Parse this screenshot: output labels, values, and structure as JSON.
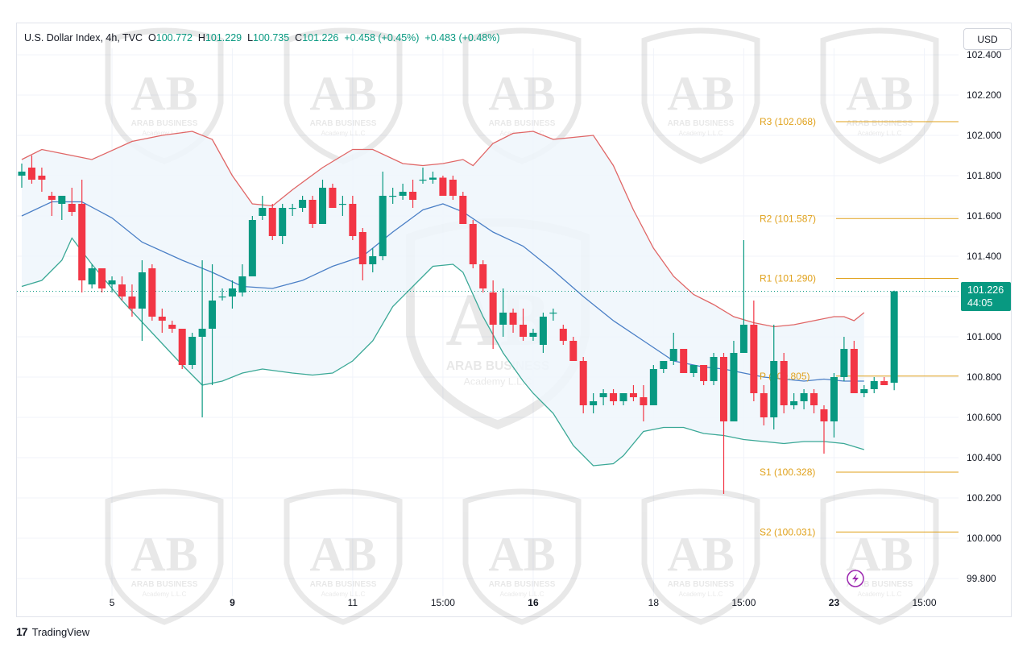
{
  "header": {
    "symbol": "U.S. Dollar Index, 4h, TVC",
    "o_label": "O",
    "o_value": "100.772",
    "h_label": "H",
    "h_value": "101.229",
    "l_label": "L",
    "l_value": "100.735",
    "c_label": "C",
    "c_value": "101.226",
    "change": "+0.458 (+0.45%)",
    "change2": "+0.483 (+0.48%)"
  },
  "currency_button": "USD",
  "price_tag": {
    "price": "101.226",
    "countdown": "44:05"
  },
  "watermark": {
    "monogram": "AB",
    "line1": "ARAB BUSINESS",
    "line2": "Academy L.L.C"
  },
  "branding": "TradingView",
  "colors": {
    "up": "#089981",
    "down": "#f23645",
    "upper_band": "#e06666",
    "lower_band": "#3aa896",
    "basis": "#4a7fc6",
    "pivot": "#e0a11b",
    "band_fill": "#eef6fb"
  },
  "chart_data": {
    "type": "candlestick",
    "timeframe": "4h",
    "ylim": [
      99.8,
      102.4
    ],
    "y_ticks": [
      "99.800",
      "100.000",
      "100.200",
      "100.400",
      "100.600",
      "100.800",
      "101.000",
      "101.200",
      "101.400",
      "101.600",
      "101.800",
      "102.000",
      "102.200",
      "102.400"
    ],
    "x_ticks": [
      {
        "label": "5",
        "bar": 9,
        "bold": false
      },
      {
        "label": "9",
        "bar": 21,
        "bold": true
      },
      {
        "label": "11",
        "bar": 33,
        "bold": false
      },
      {
        "label": "15:00",
        "bar": 42,
        "bold": false
      },
      {
        "label": "16",
        "bar": 51,
        "bold": true
      },
      {
        "label": "18",
        "bar": 63,
        "bold": false
      },
      {
        "label": "15:00",
        "bar": 72,
        "bold": false
      },
      {
        "label": "23",
        "bar": 81,
        "bold": true
      },
      {
        "label": "15:00",
        "bar": 90,
        "bold": false
      }
    ],
    "ohlc": [
      [
        101.8,
        101.86,
        101.74,
        101.82
      ],
      [
        101.84,
        101.9,
        101.76,
        101.78
      ],
      [
        101.8,
        101.84,
        101.72,
        101.78
      ],
      [
        101.7,
        101.72,
        101.6,
        101.68
      ],
      [
        101.66,
        101.68,
        101.58,
        101.7
      ],
      [
        101.66,
        101.74,
        101.6,
        101.62
      ],
      [
        101.66,
        101.78,
        101.22,
        101.28
      ],
      [
        101.26,
        101.36,
        101.24,
        101.34
      ],
      [
        101.34,
        101.34,
        101.22,
        101.24
      ],
      [
        101.26,
        101.3,
        101.22,
        101.28
      ],
      [
        101.26,
        101.3,
        101.18,
        101.2
      ],
      [
        101.2,
        101.26,
        101.1,
        101.14
      ],
      [
        101.14,
        101.38,
        100.98,
        101.32
      ],
      [
        101.34,
        101.36,
        101.08,
        101.1
      ],
      [
        101.1,
        101.14,
        101.02,
        101.08
      ],
      [
        101.06,
        101.08,
        101.02,
        101.04
      ],
      [
        101.04,
        101.04,
        100.84,
        100.86
      ],
      [
        100.86,
        101.02,
        100.84,
        101.0
      ],
      [
        101.0,
        101.38,
        100.6,
        101.04
      ],
      [
        101.04,
        101.36,
        100.76,
        101.18
      ],
      [
        101.2,
        101.24,
        101.18,
        101.2
      ],
      [
        101.2,
        101.28,
        101.14,
        101.24
      ],
      [
        101.22,
        101.36,
        101.2,
        101.3
      ],
      [
        101.3,
        101.6,
        101.3,
        101.58
      ],
      [
        101.6,
        101.7,
        101.58,
        101.64
      ],
      [
        101.64,
        101.66,
        101.48,
        101.5
      ],
      [
        101.5,
        101.66,
        101.46,
        101.64
      ],
      [
        101.64,
        101.66,
        101.6,
        101.64
      ],
      [
        101.64,
        101.7,
        101.62,
        101.68
      ],
      [
        101.68,
        101.7,
        101.54,
        101.56
      ],
      [
        101.56,
        101.78,
        101.56,
        101.74
      ],
      [
        101.74,
        101.76,
        101.64,
        101.64
      ],
      [
        101.66,
        101.7,
        101.6,
        101.66
      ],
      [
        101.66,
        101.7,
        101.48,
        101.5
      ],
      [
        101.52,
        101.54,
        101.28,
        101.36
      ],
      [
        101.36,
        101.44,
        101.32,
        101.4
      ],
      [
        101.4,
        101.82,
        101.38,
        101.7
      ],
      [
        101.7,
        101.74,
        101.66,
        101.7
      ],
      [
        101.7,
        101.76,
        101.68,
        101.72
      ],
      [
        101.72,
        101.78,
        101.64,
        101.68
      ],
      [
        101.78,
        101.84,
        101.76,
        101.78
      ],
      [
        101.78,
        101.82,
        101.76,
        101.79
      ],
      [
        101.79,
        101.8,
        101.72,
        101.7
      ],
      [
        101.78,
        101.8,
        101.68,
        101.7
      ],
      [
        101.7,
        101.72,
        101.56,
        101.56
      ],
      [
        101.56,
        101.58,
        101.34,
        101.36
      ],
      [
        101.36,
        101.38,
        101.22,
        101.24
      ],
      [
        101.22,
        101.28,
        100.94,
        101.06
      ],
      [
        101.06,
        101.24,
        101.0,
        101.12
      ],
      [
        101.12,
        101.14,
        101.02,
        101.06
      ],
      [
        101.06,
        101.14,
        100.98,
        101.0
      ],
      [
        101.0,
        101.04,
        100.98,
        101.02
      ],
      [
        100.96,
        101.12,
        100.92,
        101.1
      ],
      [
        101.12,
        101.14,
        101.08,
        101.12
      ],
      [
        101.04,
        101.06,
        100.96,
        100.98
      ],
      [
        100.98,
        101.0,
        100.88,
        100.88
      ],
      [
        100.88,
        100.9,
        100.62,
        100.66
      ],
      [
        100.66,
        100.72,
        100.62,
        100.68
      ],
      [
        100.7,
        100.74,
        100.66,
        100.72
      ],
      [
        100.72,
        100.74,
        100.66,
        100.68
      ],
      [
        100.68,
        100.72,
        100.66,
        100.72
      ],
      [
        100.72,
        100.76,
        100.68,
        100.7
      ],
      [
        100.7,
        100.76,
        100.58,
        100.66
      ],
      [
        100.66,
        100.86,
        100.66,
        100.84
      ],
      [
        100.84,
        100.88,
        100.82,
        100.88
      ],
      [
        100.88,
        101.02,
        100.86,
        100.94
      ],
      [
        100.94,
        100.94,
        100.82,
        100.82
      ],
      [
        100.82,
        100.86,
        100.8,
        100.86
      ],
      [
        100.86,
        100.86,
        100.76,
        100.78
      ],
      [
        100.78,
        100.92,
        100.76,
        100.9
      ],
      [
        100.9,
        100.92,
        100.22,
        100.58
      ],
      [
        100.58,
        100.98,
        100.58,
        100.92
      ],
      [
        100.92,
        101.48,
        100.92,
        101.06
      ],
      [
        101.06,
        101.18,
        100.68,
        100.72
      ],
      [
        100.72,
        100.76,
        100.56,
        100.6
      ],
      [
        100.6,
        101.06,
        100.54,
        100.88
      ],
      [
        100.88,
        100.92,
        100.62,
        100.66
      ],
      [
        100.66,
        100.72,
        100.64,
        100.68
      ],
      [
        100.68,
        100.74,
        100.64,
        100.72
      ],
      [
        100.72,
        100.74,
        100.62,
        100.66
      ],
      [
        100.64,
        100.66,
        100.42,
        100.58
      ],
      [
        100.58,
        100.82,
        100.5,
        100.8
      ],
      [
        100.8,
        101.0,
        100.78,
        100.94
      ],
      [
        100.94,
        100.98,
        100.72,
        100.72
      ],
      [
        100.72,
        100.76,
        100.7,
        100.74
      ],
      [
        100.74,
        100.8,
        100.72,
        100.78
      ],
      [
        100.78,
        100.8,
        100.76,
        100.76
      ],
      [
        100.772,
        101.229,
        100.735,
        101.226
      ]
    ],
    "bollinger": {
      "upper_points": [
        [
          0,
          101.88
        ],
        [
          2,
          101.93
        ],
        [
          5,
          101.9
        ],
        [
          7,
          101.88
        ],
        [
          11,
          101.97
        ],
        [
          14,
          102.0
        ],
        [
          17,
          102.02
        ],
        [
          19,
          101.98
        ],
        [
          21,
          101.8
        ],
        [
          23,
          101.66
        ],
        [
          25,
          101.65
        ],
        [
          27,
          101.73
        ],
        [
          30,
          101.84
        ],
        [
          33,
          101.93
        ],
        [
          35,
          101.93
        ],
        [
          38,
          101.86
        ],
        [
          40,
          101.85
        ],
        [
          42,
          101.86
        ],
        [
          44,
          101.88
        ],
        [
          45,
          101.85
        ],
        [
          47,
          101.96
        ],
        [
          49,
          102.01
        ],
        [
          51,
          102.02
        ],
        [
          53,
          101.98
        ],
        [
          55,
          101.99
        ],
        [
          57,
          102.0
        ],
        [
          59,
          101.85
        ],
        [
          61,
          101.63
        ],
        [
          63,
          101.44
        ],
        [
          65,
          101.3
        ],
        [
          67,
          101.21
        ],
        [
          69,
          101.16
        ],
        [
          71,
          101.1
        ],
        [
          73,
          101.07
        ],
        [
          75,
          101.05
        ],
        [
          77,
          101.06
        ],
        [
          79,
          101.08
        ],
        [
          81,
          101.1
        ],
        [
          82,
          101.1
        ],
        [
          83,
          101.08
        ],
        [
          84,
          101.12
        ]
      ],
      "basis_points": [
        [
          0,
          101.6
        ],
        [
          3,
          101.67
        ],
        [
          6,
          101.67
        ],
        [
          9,
          101.59
        ],
        [
          12,
          101.47
        ],
        [
          16,
          101.38
        ],
        [
          19,
          101.32
        ],
        [
          22,
          101.25
        ],
        [
          25,
          101.24
        ],
        [
          28,
          101.28
        ],
        [
          31,
          101.35
        ],
        [
          34,
          101.4
        ],
        [
          37,
          101.52
        ],
        [
          40,
          101.63
        ],
        [
          42,
          101.66
        ],
        [
          44,
          101.62
        ],
        [
          47,
          101.52
        ],
        [
          50,
          101.45
        ],
        [
          53,
          101.33
        ],
        [
          56,
          101.2
        ],
        [
          59,
          101.08
        ],
        [
          62,
          100.98
        ],
        [
          65,
          100.88
        ],
        [
          68,
          100.85
        ],
        [
          70,
          100.84
        ],
        [
          72,
          100.82
        ],
        [
          74,
          100.8
        ],
        [
          76,
          100.79
        ],
        [
          78,
          100.78
        ],
        [
          80,
          100.79
        ],
        [
          82,
          100.78
        ],
        [
          84,
          100.78
        ]
      ],
      "lower_points": [
        [
          0,
          101.25
        ],
        [
          2,
          101.28
        ],
        [
          4,
          101.38
        ],
        [
          5,
          101.49
        ],
        [
          7,
          101.36
        ],
        [
          10,
          101.18
        ],
        [
          13,
          101.02
        ],
        [
          16,
          100.86
        ],
        [
          18,
          100.76
        ],
        [
          20,
          100.78
        ],
        [
          22,
          100.82
        ],
        [
          24,
          100.84
        ],
        [
          27,
          100.82
        ],
        [
          29,
          100.81
        ],
        [
          31,
          100.82
        ],
        [
          33,
          100.88
        ],
        [
          35,
          100.98
        ],
        [
          37,
          101.15
        ],
        [
          39,
          101.25
        ],
        [
          41,
          101.35
        ],
        [
          43,
          101.36
        ],
        [
          44,
          101.32
        ],
        [
          46,
          101.1
        ],
        [
          48,
          100.92
        ],
        [
          50,
          100.78
        ],
        [
          51,
          100.72
        ],
        [
          53,
          100.62
        ],
        [
          55,
          100.46
        ],
        [
          57,
          100.36
        ],
        [
          59,
          100.37
        ],
        [
          60,
          100.41
        ],
        [
          62,
          100.53
        ],
        [
          64,
          100.55
        ],
        [
          66,
          100.55
        ],
        [
          68,
          100.52
        ],
        [
          70,
          100.51
        ],
        [
          72,
          100.49
        ],
        [
          74,
          100.48
        ],
        [
          76,
          100.47
        ],
        [
          78,
          100.48
        ],
        [
          80,
          100.48
        ],
        [
          82,
          100.47
        ],
        [
          84,
          100.44
        ]
      ]
    },
    "pivots": [
      {
        "label": "R3 (102.068)",
        "value": 102.068
      },
      {
        "label": "R2 (101.587)",
        "value": 101.587
      },
      {
        "label": "R1 (101.290)",
        "value": 101.29
      },
      {
        "label": "P (100.805)",
        "value": 100.805
      },
      {
        "label": "S1 (100.328)",
        "value": 100.328
      },
      {
        "label": "S2 (100.031)",
        "value": 100.031
      }
    ],
    "last_price": 101.226
  }
}
